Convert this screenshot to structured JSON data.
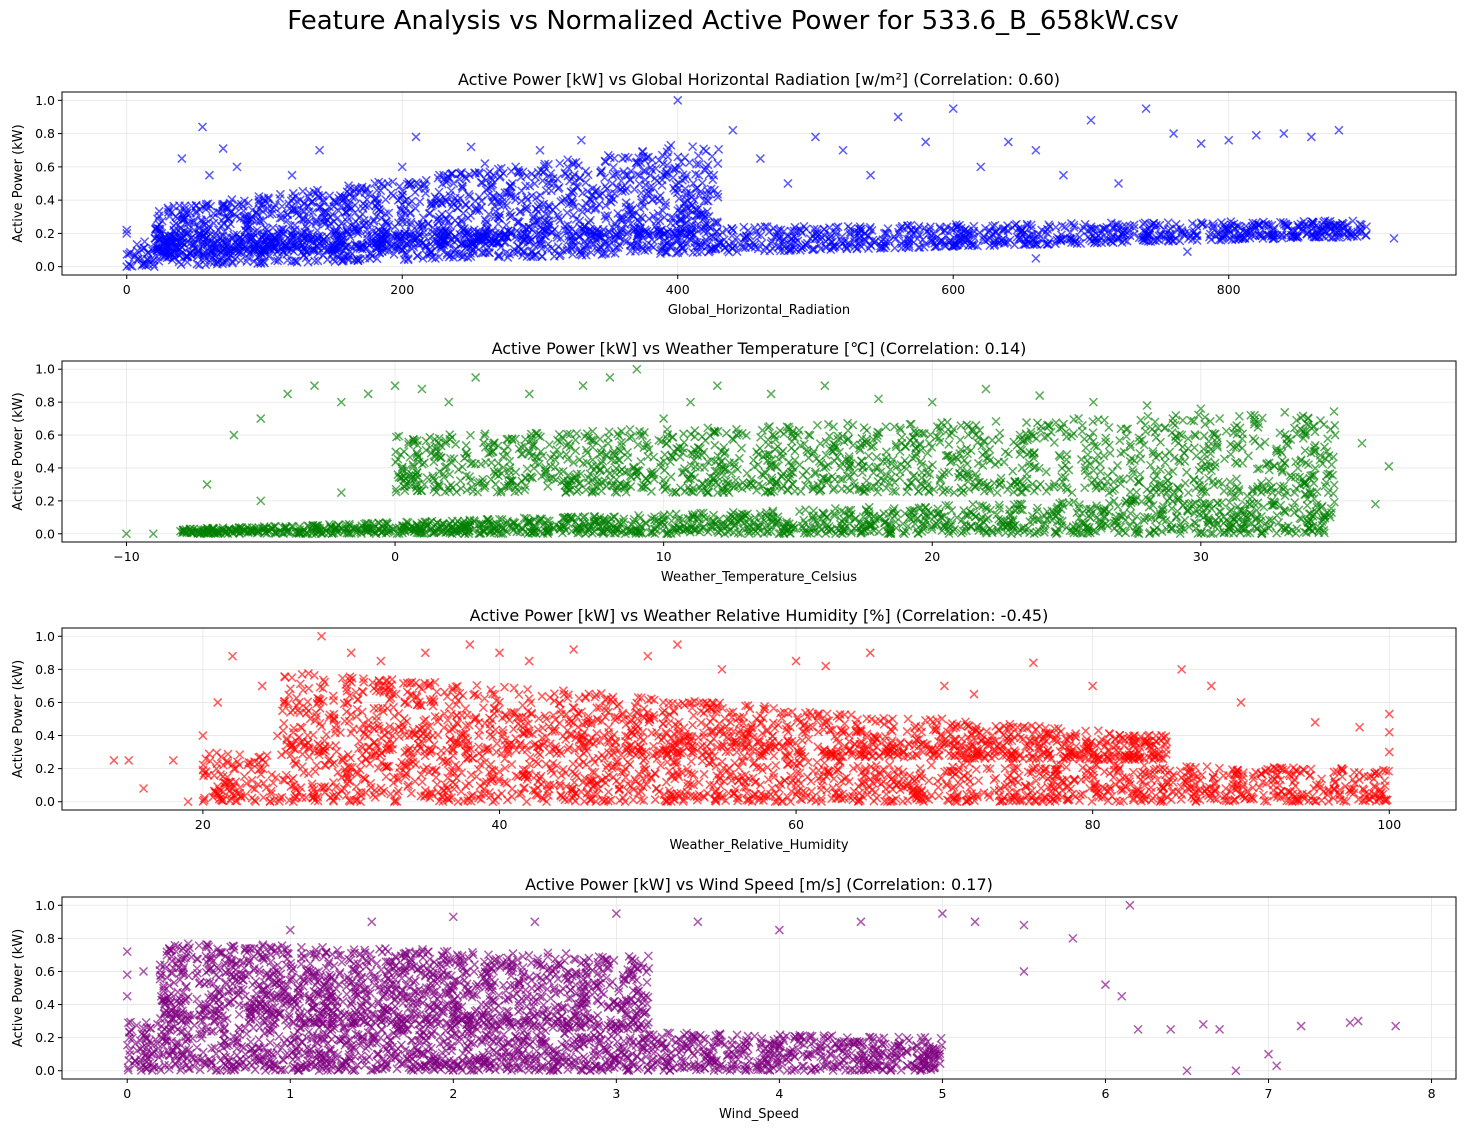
{
  "suptitle": "Feature Analysis vs Normalized Active Power for 533.6_B_658kW.csv",
  "chart_data": [
    {
      "type": "scatter",
      "title": "Active Power [kW] vs Global Horizontal Radiation [w/m²] (Correlation: 0.60)",
      "xlabel": "Global_Horizontal_Radiation",
      "ylabel": "Active Power (kW)",
      "color": "#0000ff",
      "marker": "x",
      "grid": true,
      "xlim": [
        -47,
        965
      ],
      "ylim": [
        -0.05,
        1.05
      ],
      "xticks": [
        0,
        200,
        400,
        600,
        800
      ],
      "yticks": [
        0.0,
        0.2,
        0.4,
        0.6,
        0.8,
        1.0
      ],
      "points": [
        [
          0,
          0.0
        ],
        [
          0,
          0.22
        ],
        [
          0,
          0.2
        ],
        [
          20,
          0.0
        ],
        [
          30,
          0.1
        ],
        [
          40,
          0.65
        ],
        [
          55,
          0.84
        ],
        [
          60,
          0.55
        ],
        [
          70,
          0.71
        ],
        [
          80,
          0.6
        ],
        [
          100,
          0.4
        ],
        [
          120,
          0.55
        ],
        [
          140,
          0.7
        ],
        [
          160,
          0.45
        ],
        [
          180,
          0.5
        ],
        [
          200,
          0.6
        ],
        [
          210,
          0.78
        ],
        [
          230,
          0.55
        ],
        [
          250,
          0.72
        ],
        [
          260,
          0.62
        ],
        [
          280,
          0.5
        ],
        [
          300,
          0.7
        ],
        [
          310,
          0.5
        ],
        [
          320,
          0.6
        ],
        [
          330,
          0.76
        ],
        [
          340,
          0.45
        ],
        [
          360,
          0.65
        ],
        [
          380,
          0.55
        ],
        [
          395,
          0.73
        ],
        [
          400,
          1.0
        ],
        [
          420,
          0.58
        ],
        [
          440,
          0.82
        ],
        [
          460,
          0.65
        ],
        [
          480,
          0.5
        ],
        [
          500,
          0.78
        ],
        [
          520,
          0.7
        ],
        [
          540,
          0.55
        ],
        [
          560,
          0.9
        ],
        [
          580,
          0.75
        ],
        [
          600,
          0.95
        ],
        [
          620,
          0.6
        ],
        [
          640,
          0.75
        ],
        [
          660,
          0.7
        ],
        [
          680,
          0.55
        ],
        [
          700,
          0.88
        ],
        [
          720,
          0.5
        ],
        [
          740,
          0.95
        ],
        [
          760,
          0.8
        ],
        [
          780,
          0.74
        ],
        [
          800,
          0.76
        ],
        [
          820,
          0.79
        ],
        [
          840,
          0.8
        ],
        [
          860,
          0.78
        ],
        [
          880,
          0.82
        ],
        [
          40,
          0.12
        ],
        [
          100,
          0.1
        ],
        [
          150,
          0.08
        ],
        [
          200,
          0.1
        ],
        [
          250,
          0.12
        ],
        [
          300,
          0.14
        ],
        [
          350,
          0.13
        ],
        [
          400,
          0.16
        ],
        [
          450,
          0.18
        ],
        [
          500,
          0.2
        ],
        [
          550,
          0.2
        ],
        [
          600,
          0.22
        ],
        [
          650,
          0.22
        ],
        [
          700,
          0.24
        ],
        [
          750,
          0.25
        ],
        [
          800,
          0.24
        ],
        [
          850,
          0.25
        ],
        [
          900,
          0.24
        ],
        [
          920,
          0.17
        ],
        [
          770,
          0.09
        ],
        [
          660,
          0.05
        ]
      ],
      "bands": [
        {
          "x": [
            0,
            900
          ],
          "ylow": [
            0.0,
            0.18
          ],
          "yhigh": [
            0.2,
            0.28
          ]
        },
        {
          "x": [
            20,
            430
          ],
          "ylow": [
            0.05,
            0.2
          ],
          "yhigh": [
            0.35,
            0.75
          ]
        }
      ]
    },
    {
      "type": "scatter",
      "title": "Active Power [kW] vs Weather Temperature [℃] (Correlation: 0.14)",
      "xlabel": "Weather_Temperature_Celsius",
      "ylabel": "Active Power (kW)",
      "color": "#008000",
      "marker": "x",
      "grid": true,
      "xlim": [
        -12.4,
        39.5
      ],
      "ylim": [
        -0.05,
        1.05
      ],
      "xticks": [
        -10,
        0,
        10,
        20,
        30
      ],
      "yticks": [
        0.0,
        0.2,
        0.4,
        0.6,
        0.8,
        1.0
      ],
      "points": [
        [
          -10,
          0.0
        ],
        [
          -9,
          0.0
        ],
        [
          -7,
          0.3
        ],
        [
          -6,
          0.6
        ],
        [
          -5,
          0.7
        ],
        [
          -4,
          0.85
        ],
        [
          -3,
          0.9
        ],
        [
          -2,
          0.8
        ],
        [
          -1,
          0.85
        ],
        [
          0,
          0.9
        ],
        [
          1,
          0.88
        ],
        [
          2,
          0.8
        ],
        [
          3,
          0.95
        ],
        [
          5,
          0.85
        ],
        [
          7,
          0.9
        ],
        [
          8,
          0.95
        ],
        [
          9,
          1.0
        ],
        [
          10,
          0.7
        ],
        [
          11,
          0.8
        ],
        [
          12,
          0.9
        ],
        [
          14,
          0.85
        ],
        [
          16,
          0.9
        ],
        [
          18,
          0.82
        ],
        [
          20,
          0.8
        ],
        [
          22,
          0.88
        ],
        [
          24,
          0.84
        ],
        [
          26,
          0.8
        ],
        [
          28,
          0.78
        ],
        [
          30,
          0.76
        ],
        [
          32,
          0.72
        ],
        [
          34,
          0.7
        ],
        [
          35,
          0.6
        ],
        [
          36,
          0.55
        ],
        [
          37,
          0.41
        ],
        [
          36.5,
          0.18
        ],
        [
          -2,
          0.25
        ],
        [
          -5,
          0.2
        ],
        [
          5,
          0.5
        ],
        [
          15,
          0.6
        ],
        [
          25,
          0.45
        ],
        [
          33,
          0.4
        ]
      ],
      "bands": [
        {
          "x": [
            -8,
            35
          ],
          "ylow": [
            0.0,
            0.0
          ],
          "yhigh": [
            0.03,
            0.25
          ]
        },
        {
          "x": [
            0,
            35
          ],
          "ylow": [
            0.25,
            0.25
          ],
          "yhigh": [
            0.6,
            0.75
          ]
        }
      ]
    },
    {
      "type": "scatter",
      "title": "Active Power [kW] vs Weather Relative Humidity [%] (Correlation: -0.45)",
      "xlabel": "Weather_Relative_Humidity",
      "ylabel": "Active Power (kW)",
      "color": "#ff0000",
      "marker": "x",
      "grid": true,
      "xlim": [
        10.5,
        104.5
      ],
      "ylim": [
        -0.05,
        1.05
      ],
      "xticks": [
        20,
        40,
        60,
        80,
        100
      ],
      "yticks": [
        0.0,
        0.2,
        0.4,
        0.6,
        0.8,
        1.0
      ],
      "points": [
        [
          14,
          0.25
        ],
        [
          15,
          0.25
        ],
        [
          16,
          0.08
        ],
        [
          18,
          0.25
        ],
        [
          19,
          0.0
        ],
        [
          20,
          0.4
        ],
        [
          21,
          0.6
        ],
        [
          22,
          0.88
        ],
        [
          24,
          0.7
        ],
        [
          26,
          0.75
        ],
        [
          28,
          1.0
        ],
        [
          30,
          0.9
        ],
        [
          32,
          0.85
        ],
        [
          35,
          0.9
        ],
        [
          38,
          0.95
        ],
        [
          40,
          0.9
        ],
        [
          42,
          0.85
        ],
        [
          45,
          0.92
        ],
        [
          50,
          0.88
        ],
        [
          52,
          0.95
        ],
        [
          55,
          0.8
        ],
        [
          60,
          0.85
        ],
        [
          62,
          0.82
        ],
        [
          65,
          0.9
        ],
        [
          70,
          0.7
        ],
        [
          72,
          0.65
        ],
        [
          76,
          0.84
        ],
        [
          80,
          0.7
        ],
        [
          86,
          0.8
        ],
        [
          88,
          0.7
        ],
        [
          90,
          0.6
        ],
        [
          95,
          0.48
        ],
        [
          98,
          0.45
        ],
        [
          100,
          0.53
        ],
        [
          100,
          0.42
        ],
        [
          100,
          0.3
        ]
      ],
      "bands": [
        {
          "x": [
            20,
            100
          ],
          "ylow": [
            0.0,
            0.0
          ],
          "yhigh": [
            0.3,
            0.2
          ]
        },
        {
          "x": [
            25,
            85
          ],
          "ylow": [
            0.3,
            0.25
          ],
          "yhigh": [
            0.8,
            0.4
          ]
        }
      ]
    },
    {
      "type": "scatter",
      "title": "Active Power [kW] vs Wind Speed [m/s] (Correlation: 0.17)",
      "xlabel": "Wind_Speed",
      "ylabel": "Active Power (kW)",
      "color": "#800080",
      "marker": "x",
      "grid": true,
      "xlim": [
        -0.4,
        8.15
      ],
      "ylim": [
        -0.05,
        1.05
      ],
      "xticks": [
        0,
        1,
        2,
        3,
        4,
        5,
        6,
        7,
        8
      ],
      "yticks": [
        0.0,
        0.2,
        0.4,
        0.6,
        0.8,
        1.0
      ],
      "points": [
        [
          0,
          0.72
        ],
        [
          0,
          0.58
        ],
        [
          0,
          0.45
        ],
        [
          0.1,
          0.6
        ],
        [
          0.5,
          0.75
        ],
        [
          1,
          0.85
        ],
        [
          1.5,
          0.9
        ],
        [
          2,
          0.93
        ],
        [
          2.5,
          0.9
        ],
        [
          3,
          0.95
        ],
        [
          3.5,
          0.9
        ],
        [
          4,
          0.85
        ],
        [
          4.5,
          0.9
        ],
        [
          5,
          0.95
        ],
        [
          5.2,
          0.9
        ],
        [
          5.5,
          0.88
        ],
        [
          5.8,
          0.8
        ],
        [
          5.5,
          0.6
        ],
        [
          6,
          0.52
        ],
        [
          6.1,
          0.45
        ],
        [
          6.15,
          1.0
        ],
        [
          6.2,
          0.25
        ],
        [
          6.4,
          0.25
        ],
        [
          6.6,
          0.28
        ],
        [
          6.7,
          0.25
        ],
        [
          7,
          0.1
        ],
        [
          7.05,
          0.03
        ],
        [
          7.2,
          0.27
        ],
        [
          7.5,
          0.29
        ],
        [
          7.55,
          0.3
        ],
        [
          7.78,
          0.27
        ],
        [
          6.5,
          0.0
        ],
        [
          6.8,
          0.0
        ]
      ],
      "bands": [
        {
          "x": [
            0,
            5
          ],
          "ylow": [
            0.0,
            0.0
          ],
          "yhigh": [
            0.3,
            0.2
          ]
        },
        {
          "x": [
            0.2,
            3.2
          ],
          "ylow": [
            0.3,
            0.25
          ],
          "yhigh": [
            0.78,
            0.7
          ]
        }
      ]
    }
  ]
}
